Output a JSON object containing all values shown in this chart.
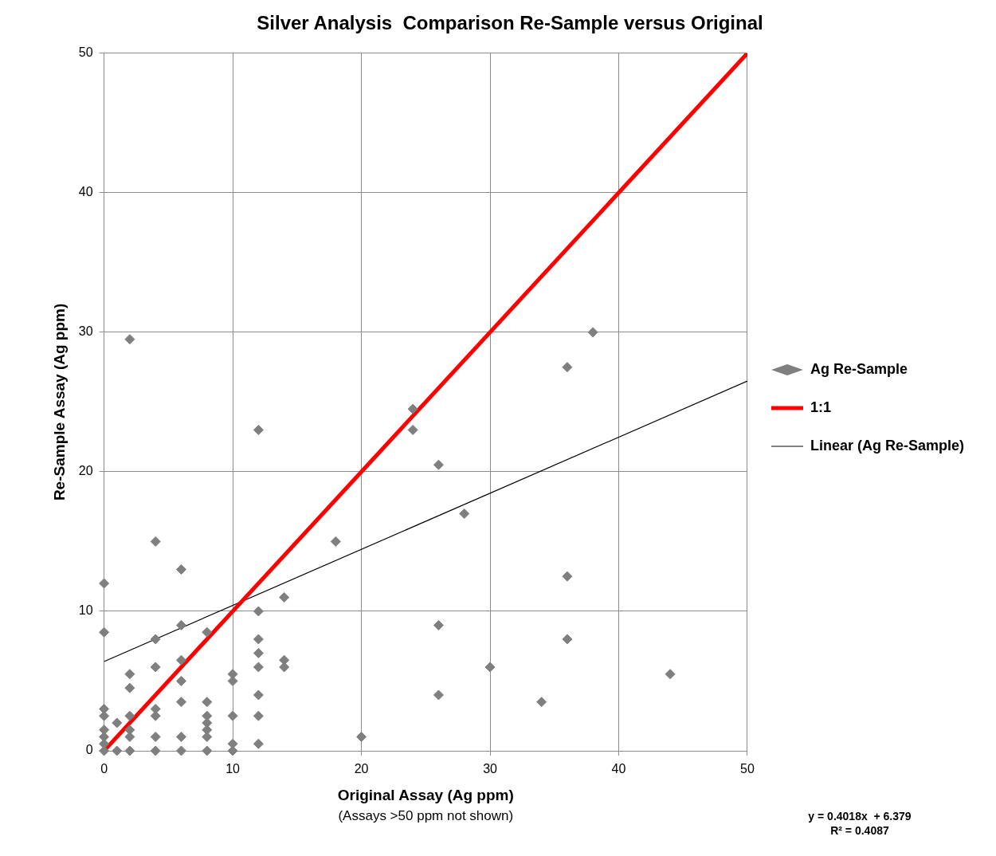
{
  "chart_data": {
    "type": "scatter",
    "title": "Silver Analysis  Comparison Re-Sample versus Original",
    "xlabel": "Original Assay (Ag ppm)",
    "ylabel": "Re-Sample Assay (Ag ppm)",
    "annotations": [
      "(Assays >50 ppm not shown)",
      "y = 0.4018x  + 6.379",
      "R² = 0.4087"
    ],
    "xlim": [
      0,
      50
    ],
    "xticks": [
      0,
      10,
      20,
      30,
      40,
      50
    ],
    "ylim": [
      0,
      50
    ],
    "yticks": [
      0,
      10,
      20,
      30,
      40,
      50
    ],
    "grid": true,
    "legend": "right",
    "series": [
      {
        "name": "Ag Re-Sample",
        "marker": "diamond",
        "color": "#7f7f7f",
        "x": [
          0,
          0,
          0,
          0,
          0,
          0,
          0,
          0,
          1,
          1,
          2,
          2,
          2,
          2,
          2,
          2,
          2,
          4,
          4,
          4,
          4,
          4,
          4,
          4,
          6,
          6,
          6,
          6,
          6,
          6,
          6,
          8,
          8,
          8,
          8,
          8,
          8,
          8,
          10,
          10,
          10,
          10,
          10,
          12,
          12,
          12,
          12,
          12,
          12,
          12,
          12,
          14,
          14,
          14,
          18,
          20,
          24,
          24,
          26,
          26,
          26,
          28,
          30,
          34,
          36,
          36,
          36,
          38,
          44
        ],
        "values": [
          12,
          8.5,
          3,
          2.5,
          1.5,
          1,
          0.5,
          0,
          2,
          0,
          29.5,
          5.5,
          4.5,
          2.5,
          1.5,
          1,
          0,
          15,
          8,
          6,
          3,
          2.5,
          1,
          0,
          13,
          9,
          6.5,
          5,
          3.5,
          1,
          0,
          8.5,
          3.5,
          2.5,
          2,
          1.5,
          1,
          0,
          5.5,
          5,
          2.5,
          0.5,
          0,
          23,
          10,
          8,
          7,
          6,
          4,
          2.5,
          0.5,
          11,
          6.5,
          6,
          15,
          1,
          24.5,
          23,
          20.5,
          9,
          4,
          17,
          6,
          3.5,
          27.5,
          12.5,
          8,
          30,
          5.5
        ]
      },
      {
        "name": "1:1",
        "type": "line",
        "marker": "none",
        "color": "#ff0000",
        "x": [
          0,
          50
        ],
        "values": [
          0,
          50
        ]
      },
      {
        "name": "Linear (Ag Re-Sample)",
        "type": "line",
        "marker": "none",
        "color": "#000000",
        "x": [
          0,
          50
        ],
        "values": [
          6.4,
          26.5
        ]
      }
    ]
  }
}
